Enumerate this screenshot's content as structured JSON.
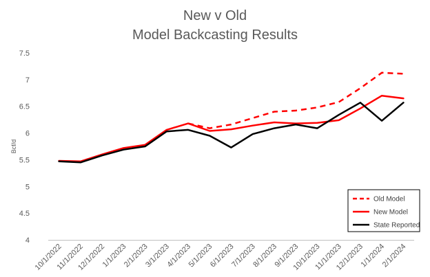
{
  "chart_data": {
    "type": "line",
    "title_lines": [
      "New v Old",
      "Model Backcasting Results"
    ],
    "xlabel": "",
    "ylabel": "Bcf/d",
    "ylim": [
      4,
      7.5
    ],
    "yticks": [
      "4",
      "4.5",
      "5",
      "5.5",
      "6",
      "6.5",
      "7",
      "7.5"
    ],
    "categories": [
      "10/1/2022",
      "11/1/2022",
      "12/1/2022",
      "1/1/2023",
      "2/1/2023",
      "3/1/2023",
      "4/1/2023",
      "5/1/2023",
      "6/1/2023",
      "7/1/2023",
      "8/1/2023",
      "9/1/2023",
      "10/1/2023",
      "11/1/2023",
      "12/1/2023",
      "1/1/2024",
      "2/1/2024"
    ],
    "grid": false,
    "legend_position": "bottom-right",
    "series": [
      {
        "name": "Old Model",
        "color": "#FF0000",
        "style": "dashed",
        "values": [
          null,
          null,
          null,
          null,
          null,
          null,
          6.18,
          6.09,
          6.16,
          6.28,
          6.4,
          6.42,
          6.48,
          6.58,
          6.84,
          7.13,
          7.11
        ]
      },
      {
        "name": "New Model",
        "color": "#FF0000",
        "style": "solid",
        "values": [
          5.48,
          5.47,
          5.6,
          5.72,
          5.78,
          6.06,
          6.18,
          6.04,
          6.07,
          6.14,
          6.2,
          6.18,
          6.19,
          6.24,
          6.46,
          6.7,
          6.65
        ]
      },
      {
        "name": "State Reported",
        "color": "#000000",
        "style": "solid",
        "values": [
          5.47,
          5.45,
          5.58,
          5.69,
          5.75,
          6.03,
          6.06,
          5.95,
          5.73,
          5.98,
          6.09,
          6.16,
          6.09,
          6.34,
          6.57,
          6.23,
          6.57
        ]
      }
    ]
  }
}
